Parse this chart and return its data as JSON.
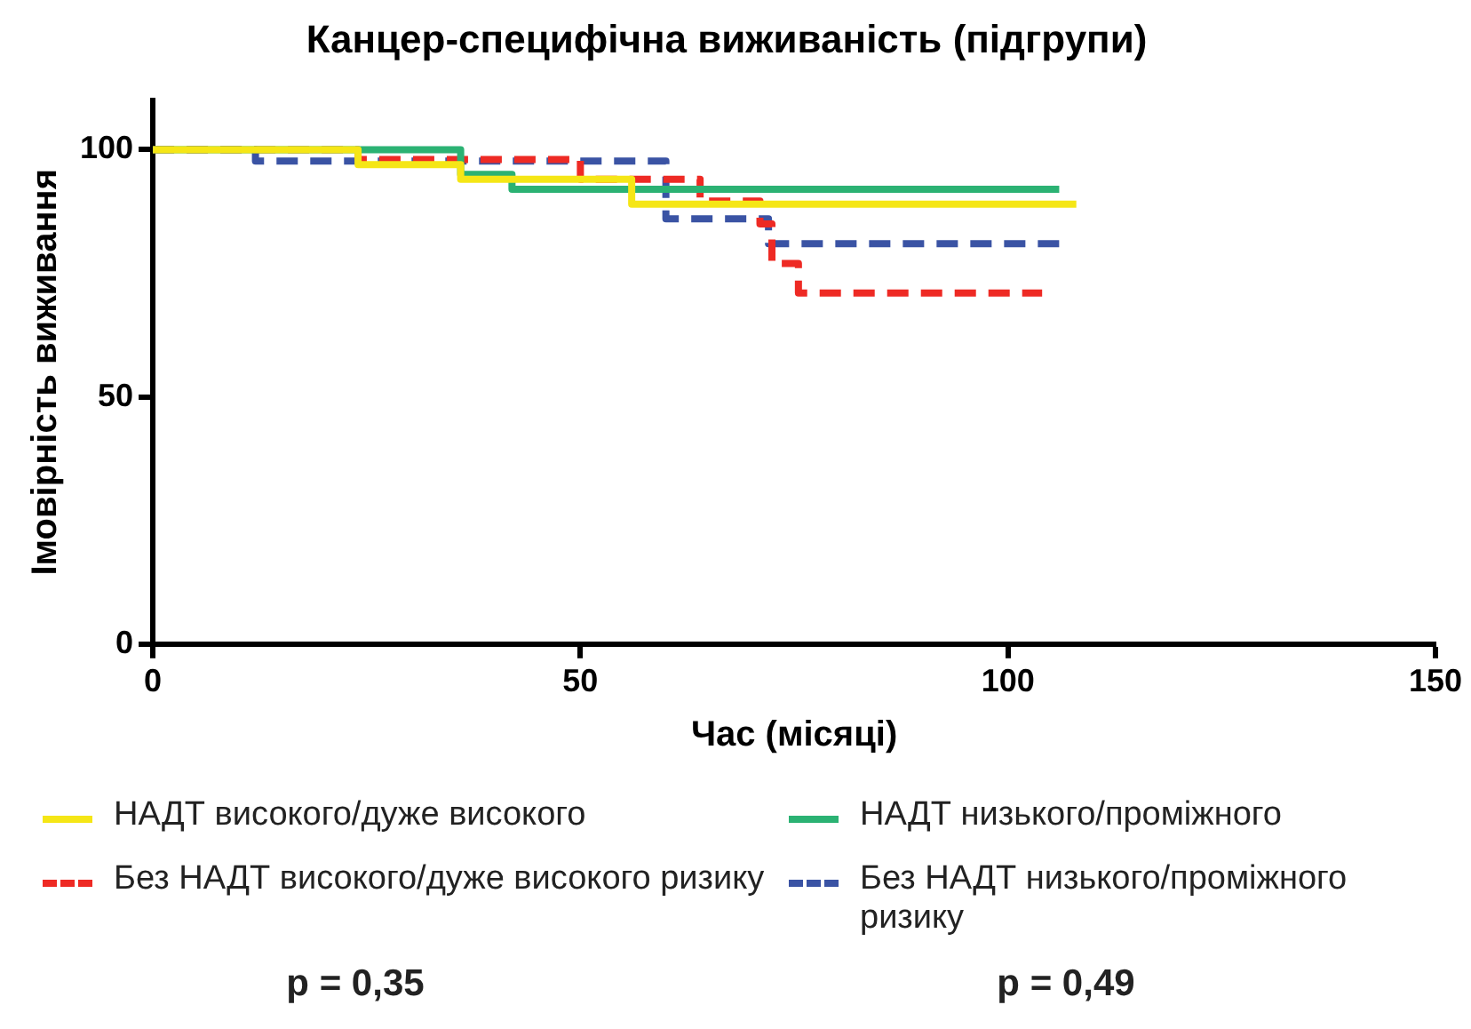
{
  "chart_data": {
    "type": "step",
    "title": "Канцер-специфічна виживаність (підгрупи)",
    "xlabel": "Час (місяці)",
    "ylabel": "Імовірність виживання",
    "xlim": [
      0,
      150
    ],
    "xticks": [
      0,
      50,
      100,
      150
    ],
    "ylim": [
      0,
      110
    ],
    "yticks": [
      0,
      50,
      100
    ],
    "grid": false,
    "legend": "bottom",
    "marker": "none",
    "series": [
      {
        "name": "НАДТ високого/дуже високого",
        "color": "#f5e616",
        "line_style": "solid",
        "x": [
          0,
          24,
          36,
          56,
          108
        ],
        "values": [
          100,
          97,
          94,
          89,
          89
        ]
      },
      {
        "name": "НАДТ низького/проміжного",
        "color": "#2bb273",
        "line_style": "solid",
        "x": [
          0,
          36,
          42,
          106
        ],
        "values": [
          100,
          95,
          92,
          92
        ]
      },
      {
        "name": "Без НАДТ високого/дуже високого ризику",
        "color": "#ee2a24",
        "line_style": "dashed",
        "x": [
          0,
          24,
          50,
          64,
          71,
          72.4,
          75.5,
          104
        ],
        "values": [
          100,
          98,
          94,
          89.6,
          85,
          77,
          71,
          71
        ]
      },
      {
        "name": "Без НАДТ низького/проміжного ризику",
        "color": "#3a53a4",
        "line_style": "dashed",
        "x": [
          0,
          12,
          60,
          72,
          106
        ],
        "values": [
          100,
          97.7,
          86,
          81,
          81
        ]
      }
    ],
    "annotations": [
      "p = 0,35",
      "p = 0,49"
    ]
  }
}
